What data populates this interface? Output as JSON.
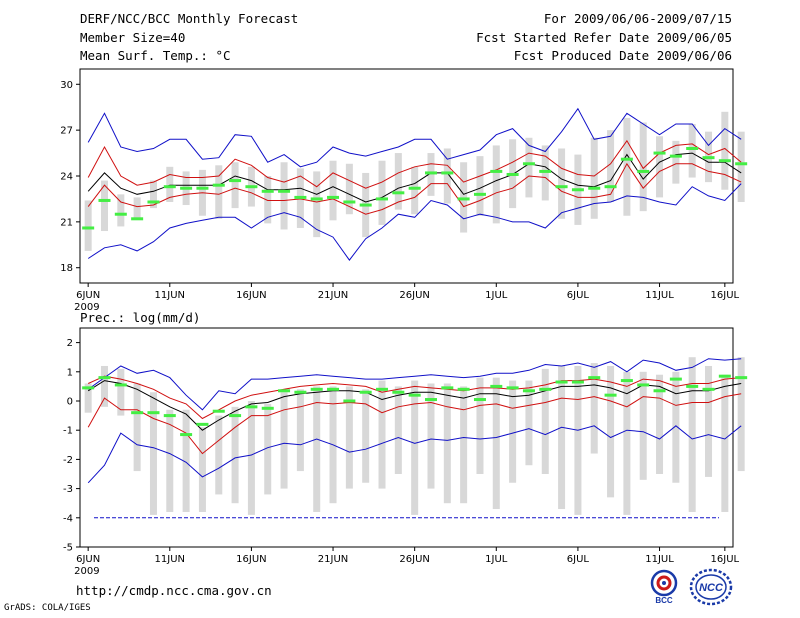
{
  "header": {
    "title": "DERF/NCC/BCC Monthly Forecast",
    "member_size": "Member Size=40",
    "variable": "Mean Surf. Temp.: °C",
    "forecast_period": "For 2009/06/06-2009/07/15",
    "refer_date": "Fcst Started Refer Date 2009/06/05",
    "produced_date": "Fcst Produced Date 2009/06/06"
  },
  "footer": {
    "url": "http://cmdp.ncc.cma.gov.cn",
    "credit": "GrADS: COLA/IGES",
    "logo_bcc": "BCC",
    "logo_ncc": "NCC"
  },
  "colors": {
    "ensemble_mean": "#000000",
    "inner_bounds": "#d01010",
    "outer_bounds": "#1010c8",
    "member_spread": "#d8d8d8",
    "observed_climate": "#44ee44",
    "reference_line": "#1010c8"
  },
  "chart_data": [
    {
      "type": "line",
      "title": "Mean Surf. Temp.: °C",
      "x_ticks": [
        {
          "day": 1,
          "label": "6JUN",
          "sublabel": "2009"
        },
        {
          "day": 6,
          "label": "11JUN"
        },
        {
          "day": 11,
          "label": "16JUN"
        },
        {
          "day": 16,
          "label": "21JUN"
        },
        {
          "day": 21,
          "label": "26JUN"
        },
        {
          "day": 26,
          "label": "1JUL"
        },
        {
          "day": 31,
          "label": "6JUL"
        },
        {
          "day": 36,
          "label": "11JUL"
        },
        {
          "day": 40,
          "label": "16JUL"
        }
      ],
      "ylim": [
        17,
        31
      ],
      "yticks": [
        18,
        21,
        24,
        27,
        30
      ],
      "xlim": [
        0.5,
        40.5
      ],
      "series": [
        {
          "name": "ensemble-mean",
          "role": "mean",
          "values": [
            23.0,
            24.2,
            23.2,
            22.8,
            23.0,
            23.4,
            23.4,
            23.4,
            23.4,
            24.0,
            23.7,
            23.1,
            23.1,
            23.2,
            22.8,
            23.3,
            22.8,
            22.3,
            22.6,
            23.2,
            23.5,
            24.2,
            24.2,
            22.8,
            23.2,
            23.7,
            24.1,
            24.8,
            24.6,
            23.8,
            23.4,
            23.3,
            23.7,
            25.4,
            23.8,
            24.9,
            25.4,
            25.5,
            24.9,
            24.9,
            24.2
          ]
        },
        {
          "name": "upper-spread",
          "role": "inner",
          "values": [
            23.9,
            25.9,
            24.0,
            23.4,
            23.6,
            24.1,
            23.9,
            23.9,
            24.0,
            25.1,
            24.7,
            23.9,
            23.6,
            24.0,
            23.3,
            24.2,
            23.7,
            23.2,
            23.6,
            24.2,
            24.6,
            24.8,
            24.7,
            23.6,
            24.0,
            24.4,
            24.9,
            25.5,
            25.3,
            24.5,
            24.1,
            24.0,
            24.8,
            26.3,
            24.5,
            25.5,
            26.0,
            26.1,
            25.4,
            25.8,
            24.9
          ]
        },
        {
          "name": "lower-spread",
          "role": "inner",
          "values": [
            22.0,
            23.4,
            22.3,
            22.0,
            22.1,
            22.6,
            22.8,
            22.9,
            22.8,
            23.2,
            22.9,
            22.4,
            22.4,
            22.5,
            22.3,
            22.5,
            22.0,
            21.5,
            21.8,
            22.3,
            22.6,
            23.5,
            23.5,
            22.0,
            22.4,
            22.9,
            23.2,
            24.0,
            23.9,
            23.0,
            22.6,
            22.6,
            22.8,
            24.8,
            23.2,
            24.3,
            24.8,
            24.8,
            24.3,
            24.1,
            23.6
          ]
        },
        {
          "name": "upper-extreme",
          "role": "outer",
          "values": [
            26.2,
            28.1,
            25.9,
            25.6,
            25.8,
            26.4,
            26.4,
            25.1,
            25.2,
            26.7,
            26.6,
            24.9,
            25.4,
            24.6,
            24.9,
            25.9,
            25.5,
            25.3,
            25.6,
            25.9,
            26.4,
            26.4,
            25.1,
            25.4,
            25.7,
            26.7,
            27.1,
            26.0,
            25.6,
            26.9,
            28.4,
            26.4,
            26.6,
            28.1,
            27.4,
            26.7,
            27.4,
            27.4,
            26.0,
            27.1,
            26.4
          ]
        },
        {
          "name": "lower-extreme",
          "role": "outer",
          "values": [
            18.6,
            19.3,
            19.5,
            19.1,
            19.7,
            20.6,
            20.9,
            21.1,
            21.3,
            21.3,
            20.6,
            21.3,
            21.6,
            21.3,
            20.5,
            20.0,
            18.5,
            19.9,
            20.6,
            21.5,
            21.3,
            22.4,
            22.1,
            21.2,
            21.5,
            21.3,
            21.0,
            21.0,
            20.6,
            21.6,
            21.9,
            22.2,
            22.3,
            22.7,
            22.6,
            22.3,
            22.1,
            23.3,
            22.7,
            22.4,
            23.5
          ]
        },
        {
          "name": "member-box-top",
          "role": "box_top",
          "values": [
            22.4,
            23.7,
            22.8,
            22.6,
            23.7,
            24.6,
            24.3,
            24.4,
            24.7,
            24.9,
            24.6,
            24.0,
            24.9,
            24.5,
            24.3,
            25.0,
            24.8,
            24.2,
            25.0,
            25.5,
            24.6,
            25.5,
            25.8,
            24.9,
            25.3,
            26.0,
            26.4,
            26.5,
            26.0,
            25.8,
            25.4,
            26.5,
            27.0,
            27.8,
            27.5,
            26.6,
            26.3,
            27.4,
            26.9,
            28.2,
            26.9
          ]
        },
        {
          "name": "member-box-bottom",
          "role": "box_bottom",
          "values": [
            19.1,
            20.4,
            20.7,
            21.2,
            21.9,
            22.3,
            22.1,
            21.4,
            21.2,
            21.9,
            22.0,
            20.9,
            20.5,
            20.6,
            20.0,
            21.1,
            21.5,
            20.0,
            20.8,
            21.8,
            21.5,
            22.7,
            22.2,
            20.3,
            21.4,
            20.9,
            21.9,
            22.6,
            22.4,
            21.2,
            20.8,
            21.2,
            22.3,
            21.4,
            21.7,
            22.6,
            23.5,
            23.9,
            23.6,
            23.1,
            22.3
          ]
        },
        {
          "name": "observed-climate",
          "role": "climate",
          "values": [
            20.6,
            22.4,
            21.5,
            21.2,
            22.3,
            23.3,
            23.2,
            23.2,
            23.4,
            23.7,
            23.3,
            23.0,
            23.0,
            22.6,
            22.5,
            22.6,
            22.3,
            22.1,
            22.5,
            22.9,
            23.2,
            24.2,
            24.2,
            22.5,
            22.8,
            24.3,
            24.1,
            24.8,
            24.3,
            23.3,
            23.1,
            23.2,
            23.3,
            25.1,
            24.3,
            25.5,
            25.3,
            25.8,
            25.2,
            25.0,
            24.8
          ]
        }
      ]
    },
    {
      "type": "line",
      "title": "Prec.: log(mm/d)",
      "x_ticks": [
        {
          "day": 1,
          "label": "6JUN",
          "sublabel": "2009"
        },
        {
          "day": 6,
          "label": "11JUN"
        },
        {
          "day": 11,
          "label": "16JUN"
        },
        {
          "day": 16,
          "label": "21JUN"
        },
        {
          "day": 21,
          "label": "26JUN"
        },
        {
          "day": 26,
          "label": "1JUL"
        },
        {
          "day": 31,
          "label": "6JUL"
        },
        {
          "day": 36,
          "label": "11JUL"
        },
        {
          "day": 40,
          "label": "16JUL"
        }
      ],
      "ylim": [
        -5,
        2.5
      ],
      "yticks": [
        -5,
        -4,
        -3,
        -2,
        -1,
        0,
        1,
        2
      ],
      "xlim": [
        0.5,
        40.5
      ],
      "reference_line": -4,
      "series": [
        {
          "name": "ensemble-mean",
          "role": "mean",
          "values": [
            0.35,
            0.7,
            0.6,
            0.4,
            0.1,
            -0.2,
            -0.45,
            -1.0,
            -0.65,
            -0.35,
            -0.1,
            -0.05,
            0.15,
            0.25,
            0.3,
            0.35,
            0.35,
            0.3,
            0.05,
            0.2,
            0.3,
            0.3,
            0.2,
            0.1,
            0.25,
            0.25,
            0.15,
            0.2,
            0.35,
            0.5,
            0.5,
            0.55,
            0.45,
            0.25,
            0.55,
            0.5,
            0.25,
            0.35,
            0.35,
            0.5,
            0.6
          ]
        },
        {
          "name": "upper-spread",
          "role": "inner",
          "values": [
            0.6,
            0.85,
            0.75,
            0.6,
            0.4,
            0.1,
            -0.1,
            -0.6,
            -0.3,
            0.0,
            0.2,
            0.3,
            0.4,
            0.5,
            0.55,
            0.6,
            0.55,
            0.5,
            0.3,
            0.4,
            0.5,
            0.45,
            0.4,
            0.35,
            0.45,
            0.45,
            0.4,
            0.45,
            0.55,
            0.7,
            0.7,
            0.75,
            0.65,
            0.5,
            0.75,
            0.7,
            0.5,
            0.6,
            0.6,
            0.75,
            0.8
          ]
        },
        {
          "name": "lower-spread",
          "role": "inner",
          "values": [
            -0.9,
            0.1,
            -0.3,
            -0.3,
            -0.6,
            -0.8,
            -1.1,
            -1.8,
            -1.35,
            -0.9,
            -0.5,
            -0.5,
            -0.3,
            -0.2,
            -0.05,
            -0.1,
            -0.05,
            -0.1,
            -0.4,
            -0.2,
            -0.1,
            -0.05,
            -0.2,
            -0.3,
            -0.15,
            -0.1,
            -0.25,
            -0.15,
            -0.05,
            0.1,
            0.05,
            0.15,
            0.0,
            -0.2,
            0.15,
            0.1,
            -0.15,
            -0.05,
            -0.05,
            0.15,
            0.25
          ]
        },
        {
          "name": "upper-extreme",
          "role": "outer",
          "values": [
            0.4,
            0.8,
            1.2,
            0.95,
            1.05,
            0.8,
            0.2,
            -0.3,
            0.35,
            0.25,
            0.75,
            0.75,
            0.8,
            0.85,
            0.9,
            0.85,
            0.8,
            0.75,
            0.75,
            0.8,
            0.85,
            0.9,
            0.85,
            0.8,
            0.85,
            0.95,
            0.95,
            1.05,
            1.25,
            1.2,
            1.3,
            1.15,
            1.35,
            1.0,
            1.4,
            1.3,
            1.05,
            1.15,
            1.45,
            1.4,
            1.45
          ]
        },
        {
          "name": "lower-extreme",
          "role": "outer",
          "values": [
            -2.8,
            -2.2,
            -1.1,
            -1.5,
            -1.6,
            -1.8,
            -2.1,
            -2.6,
            -2.3,
            -1.95,
            -1.85,
            -1.6,
            -1.45,
            -1.5,
            -1.3,
            -1.5,
            -1.75,
            -1.65,
            -1.45,
            -1.25,
            -1.45,
            -1.3,
            -1.35,
            -1.25,
            -1.3,
            -1.25,
            -1.1,
            -0.95,
            -1.15,
            -0.9,
            -1.0,
            -0.85,
            -1.25,
            -1.0,
            -1.05,
            -1.3,
            -0.85,
            -1.3,
            -1.15,
            -1.3,
            -0.85
          ]
        },
        {
          "name": "member-box-top",
          "role": "box_top",
          "values": [
            0.6,
            1.2,
            1.1,
            0.6,
            0.3,
            -0.3,
            -0.3,
            -0.9,
            -0.5,
            -0.2,
            0.0,
            -0.1,
            0.3,
            0.4,
            0.5,
            0.5,
            0.5,
            0.4,
            0.7,
            0.5,
            0.7,
            0.6,
            0.6,
            0.5,
            0.8,
            0.8,
            0.7,
            0.7,
            1.1,
            1.2,
            1.2,
            1.3,
            1.2,
            1.0,
            1.0,
            0.9,
            1.0,
            1.5,
            1.2,
            0.9,
            1.5
          ]
        },
        {
          "name": "member-box-bottom",
          "role": "box_bottom",
          "values": [
            -0.4,
            -0.2,
            -0.5,
            -2.4,
            -3.9,
            -3.8,
            -3.8,
            -3.8,
            -3.2,
            -3.5,
            -3.9,
            -3.2,
            -3.0,
            -2.4,
            -3.8,
            -3.5,
            -3.0,
            -2.8,
            -3.0,
            -2.5,
            -3.9,
            -3.0,
            -3.5,
            -3.5,
            -2.5,
            -3.7,
            -2.8,
            -2.2,
            -2.5,
            -3.7,
            -3.9,
            -1.8,
            -3.3,
            -3.9,
            -2.7,
            -2.5,
            -2.8,
            -3.8,
            -2.6,
            -3.8,
            -2.4
          ]
        },
        {
          "name": "observed-climate",
          "role": "climate",
          "values": [
            0.45,
            0.8,
            0.55,
            -0.4,
            -0.4,
            -0.5,
            -1.15,
            -0.8,
            -0.35,
            -0.5,
            -0.2,
            -0.25,
            0.35,
            0.3,
            0.4,
            0.4,
            0.0,
            0.3,
            0.4,
            0.3,
            0.2,
            0.05,
            0.45,
            0.4,
            0.05,
            0.5,
            0.45,
            0.35,
            0.4,
            0.65,
            0.65,
            0.8,
            0.2,
            0.7,
            0.55,
            0.35,
            0.75,
            0.5,
            0.4,
            0.85,
            0.8
          ]
        }
      ]
    }
  ]
}
